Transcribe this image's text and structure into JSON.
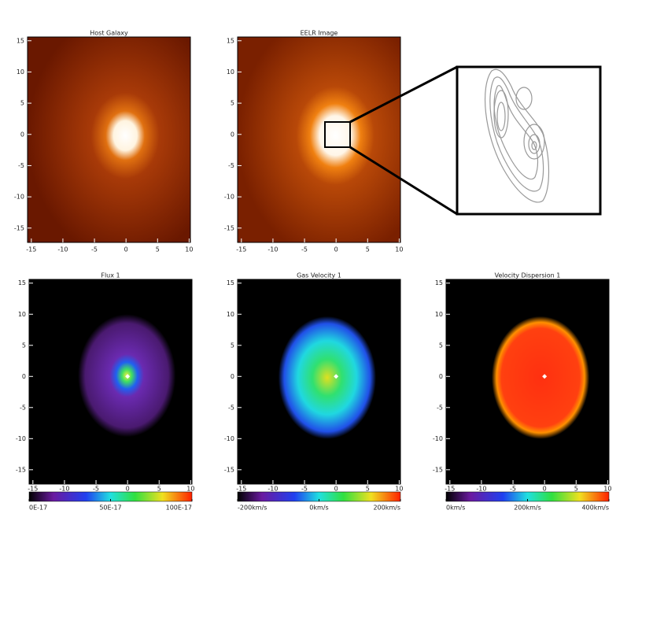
{
  "chart_data": [
    {
      "type": "image",
      "title": "Host Galaxy",
      "xlim": [
        -15.6,
        10.2
      ],
      "ylim": [
        -17.3,
        15.6
      ],
      "xticks": [
        -15,
        -10,
        -5,
        0,
        5,
        10
      ],
      "yticks": [
        -15,
        -10,
        -5,
        0,
        5,
        10,
        15
      ]
    },
    {
      "type": "image",
      "title": "EELR Image",
      "xlim": [
        -15.6,
        10.2
      ],
      "ylim": [
        -17.3,
        15.6
      ],
      "xticks": [
        -15,
        -10,
        -5,
        0,
        5,
        10
      ],
      "yticks": [
        -15,
        -10,
        -5,
        0,
        5,
        10,
        15
      ]
    },
    {
      "type": "image",
      "title": "Flux 1",
      "xlim": [
        -15.6,
        10.2
      ],
      "ylim": [
        -17.3,
        15.6
      ],
      "xticks": [
        -15,
        -10,
        -5,
        0,
        5,
        10
      ],
      "yticks": [
        -15,
        -10,
        -5,
        0,
        5,
        10,
        15
      ],
      "colorbar_lim": [
        0,
        100
      ],
      "colorbar_ticks": [
        {
          "value": 0,
          "label": "0E-17"
        },
        {
          "value": 50,
          "label": "50E-17"
        },
        {
          "value": 100,
          "label": "100E-17"
        }
      ]
    },
    {
      "type": "image",
      "title": "Gas Velocity 1",
      "xlim": [
        -15.6,
        10.2
      ],
      "ylim": [
        -17.3,
        15.6
      ],
      "xticks": [
        -15,
        -10,
        -5,
        0,
        5,
        10
      ],
      "yticks": [
        -15,
        -10,
        -5,
        0,
        5,
        10,
        15
      ],
      "colorbar_lim": [
        -200,
        200
      ],
      "colorbar_ticks": [
        {
          "value": -200,
          "label": "-200km/s"
        },
        {
          "value": 0,
          "label": "0km/s"
        },
        {
          "value": 200,
          "label": "200km/s"
        }
      ]
    },
    {
      "type": "image",
      "title": "Velocity Dispersion 1",
      "xlim": [
        -15.6,
        10.2
      ],
      "ylim": [
        -17.3,
        15.6
      ],
      "xticks": [
        -15,
        -10,
        -5,
        0,
        5,
        10
      ],
      "yticks": [
        -15,
        -10,
        -5,
        0,
        5,
        10,
        15
      ],
      "colorbar_lim": [
        0,
        400
      ],
      "colorbar_ticks": [
        {
          "value": 0,
          "label": "0km/s"
        },
        {
          "value": 200,
          "label": "200km/s"
        },
        {
          "value": 400,
          "label": "400km/s"
        }
      ]
    }
  ]
}
